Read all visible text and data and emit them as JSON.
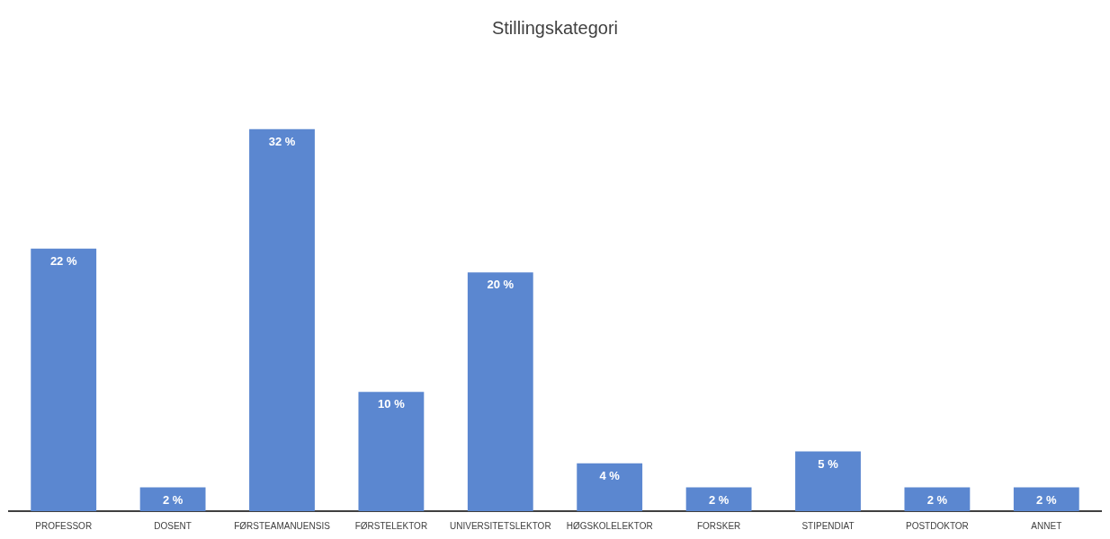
{
  "chart_data": {
    "type": "bar",
    "title": "Stillingskategori",
    "categories": [
      "PROFESSOR",
      "DOSENT",
      "FØRSTEAMANUENSIS",
      "FØRSTELEKTOR",
      "UNIVERSITETSLEKTOR",
      "HØGSKOLELEKTOR",
      "FORSKER",
      "STIPENDIAT",
      "POSTDOKTOR",
      "ANNET"
    ],
    "values": [
      22,
      2,
      32,
      10,
      20,
      4,
      2,
      5,
      2,
      2
    ],
    "value_labels": [
      "22 %",
      "2 %",
      "32 %",
      "10 %",
      "20 %",
      "4 %",
      "2 %",
      "5 %",
      "2 %",
      "2 %"
    ],
    "color": "#5b87d0",
    "grid": false,
    "legend": false,
    "tick_labels": "x"
  }
}
